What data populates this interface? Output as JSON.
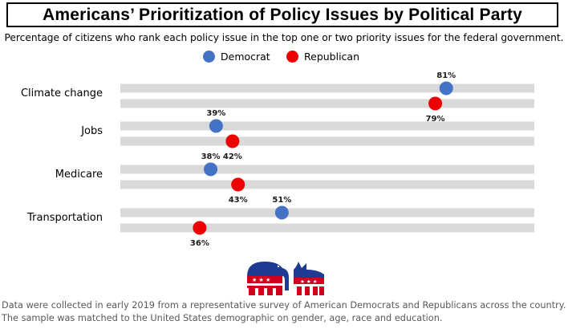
{
  "header": {
    "title": "Americans’ Prioritization of Policy Issues by Political Party",
    "subtitle": "Percentage of citizens who rank each policy issue in the top one or two priority issues for the federal government."
  },
  "legend": [
    {
      "name": "Democrat",
      "color": "#4472c4"
    },
    {
      "name": "Republican",
      "color": "#ee0000"
    }
  ],
  "chart_data": {
    "type": "dot",
    "title": "Americans’ Prioritization of Policy Issues by Political Party",
    "categories": [
      "Climate change",
      "Jobs",
      "Medicare",
      "Transportation"
    ],
    "series": [
      {
        "name": "Democrat",
        "color": "#4472c4",
        "values": [
          81,
          39,
          38,
          51
        ],
        "labels": [
          "81%",
          "39%",
          "38%",
          "51%"
        ]
      },
      {
        "name": "Republican",
        "color": "#ee0000",
        "values": [
          79,
          42,
          43,
          36
        ],
        "labels": [
          "79%",
          "42%",
          "43%",
          "36%"
        ]
      }
    ],
    "xlim": [
      0,
      100
    ],
    "grid": false
  },
  "footnote": {
    "line1": "Data were collected in early 2019 from a representative survey of American Democrats and Republicans across the country.",
    "line2": "The sample was matched to the United States demographic on gender, age, race and education."
  },
  "logo": {
    "icon": "party-animals-icon",
    "colors": {
      "navy": "#1f3a93",
      "red": "#d0021b"
    }
  }
}
